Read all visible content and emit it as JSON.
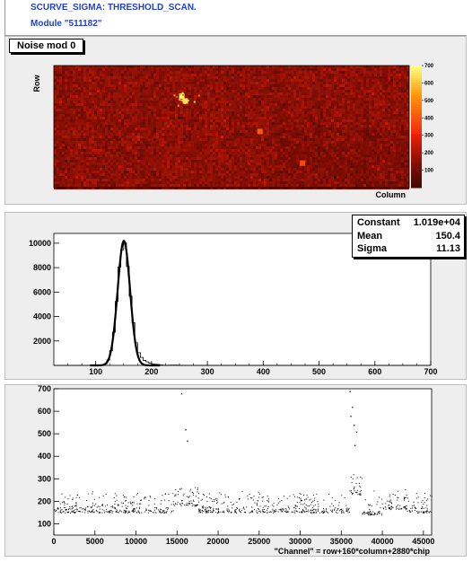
{
  "header": {
    "line1": "SCURVE_SIGMA: THRESHOLD_SCAN.",
    "line2": "Module \"511182\""
  },
  "pad_title": "Noise mod 0",
  "colors": {
    "accent": "#1f3fd6",
    "pad_bg": "#eeeeee",
    "hot": "#ffd400",
    "map_bg": "#7a1708"
  },
  "stats": [
    {
      "name": "Constant",
      "value": "1.019e+04"
    },
    {
      "name": "Mean",
      "value": "150.4"
    },
    {
      "name": "Sigma",
      "value": "11.13"
    }
  ],
  "chart_data": [
    {
      "type": "heatmap",
      "xlabel": "Column",
      "ylabel": "Row",
      "z_range": [
        0,
        700
      ],
      "colorbar_ticks": [
        "100",
        "200",
        "300",
        "400",
        "500",
        "600",
        "700"
      ],
      "background_level": 160,
      "hot_spots": [
        {
          "column": 0.36,
          "row": 0.75,
          "value": 700
        },
        {
          "column": 0.37,
          "row": 0.71,
          "value": 650
        },
        {
          "column": 0.58,
          "row": 0.46,
          "value": 420
        },
        {
          "column": 0.7,
          "row": 0.2,
          "value": 380
        }
      ]
    },
    {
      "type": "bar",
      "title": "",
      "xlabel": "",
      "ylabel": "",
      "xlim": [
        25,
        700
      ],
      "ylim": [
        0,
        10800
      ],
      "x_ticks": [
        "100",
        "200",
        "300",
        "400",
        "500",
        "600",
        "700"
      ],
      "y_ticks": [
        "2000",
        "4000",
        "6000",
        "8000",
        "10000"
      ],
      "fit": {
        "constant": 10190,
        "mean": 150.4,
        "sigma": 11.13
      },
      "tail": [
        {
          "x": 175,
          "y": 900
        },
        {
          "x": 185,
          "y": 500
        },
        {
          "x": 195,
          "y": 300
        },
        {
          "x": 210,
          "y": 150
        },
        {
          "x": 240,
          "y": 60
        }
      ]
    },
    {
      "type": "scatter",
      "xlabel": "\"Channel\" = row+160*column+2880*chip",
      "ylabel": "",
      "xlim": [
        0,
        46000
      ],
      "ylim": [
        50,
        700
      ],
      "x_ticks": [
        "0",
        "5000",
        "10000",
        "15000",
        "20000",
        "25000",
        "30000",
        "35000",
        "40000",
        "45000"
      ],
      "y_ticks": [
        "100",
        "200",
        "300",
        "400",
        "500",
        "600",
        "700"
      ],
      "band": [
        {
          "from": 0,
          "to": 14500,
          "level": 150
        },
        {
          "from": 14500,
          "to": 17500,
          "level": 180
        },
        {
          "from": 17500,
          "to": 36000,
          "level": 150
        },
        {
          "from": 36000,
          "to": 37500,
          "level": 230
        },
        {
          "from": 37500,
          "to": 40000,
          "level": 140
        },
        {
          "from": 40000,
          "to": 43000,
          "level": 165
        },
        {
          "from": 43000,
          "to": 46000,
          "level": 150
        }
      ],
      "outliers": [
        {
          "x": 15500,
          "y": 680
        },
        {
          "x": 16000,
          "y": 520
        },
        {
          "x": 16200,
          "y": 470
        },
        {
          "x": 36000,
          "y": 690
        },
        {
          "x": 36300,
          "y": 620
        },
        {
          "x": 36100,
          "y": 580
        },
        {
          "x": 36500,
          "y": 540
        },
        {
          "x": 36800,
          "y": 510
        },
        {
          "x": 36600,
          "y": 450
        }
      ]
    }
  ]
}
